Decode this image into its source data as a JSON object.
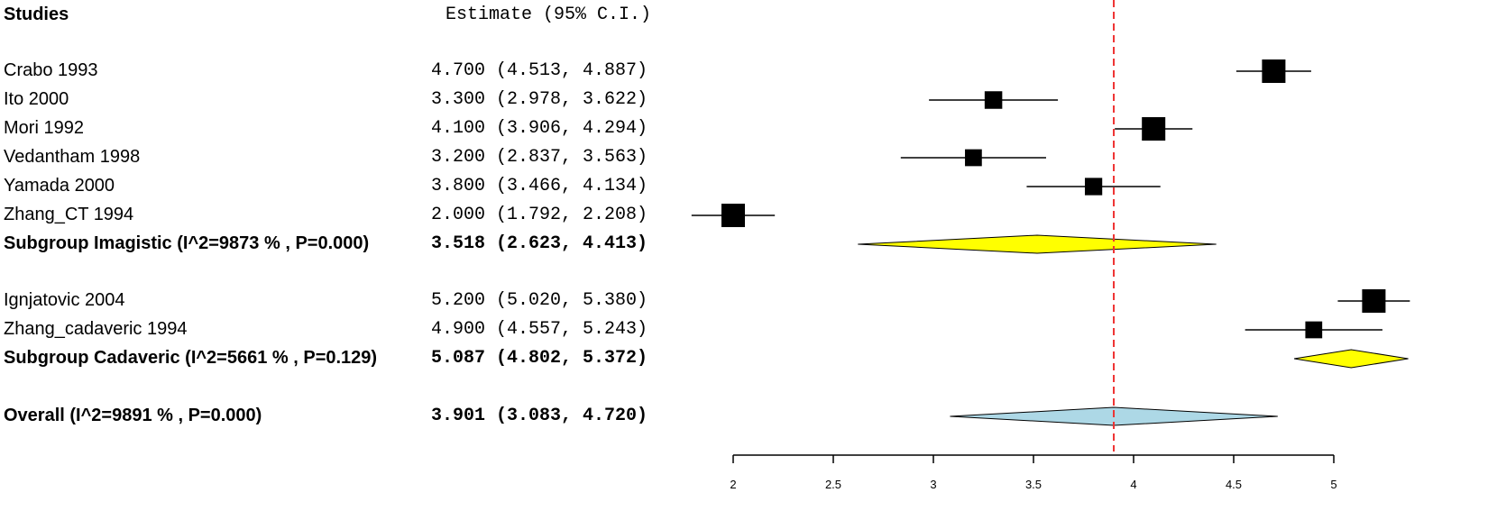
{
  "header": {
    "studies_label": "Studies",
    "estimate_label": "Estimate (95% C.I.)"
  },
  "chart_data": {
    "type": "forest",
    "xlim": [
      2,
      5.4
    ],
    "x_ticks": [
      "2",
      "2.5",
      "3",
      "3.5",
      "4",
      "4.5",
      "5"
    ],
    "reference_line": 3.901,
    "rows": [
      {
        "label": "Crabo 1993",
        "estimate_text": "4.700 (4.513, 4.887)",
        "est": 4.7,
        "lo": 4.513,
        "hi": 4.887,
        "kind": "study",
        "weight": 1.0
      },
      {
        "label": "Ito 2000",
        "estimate_text": "3.300 (2.978, 3.622)",
        "est": 3.3,
        "lo": 2.978,
        "hi": 3.622,
        "kind": "study",
        "weight": 0.75
      },
      {
        "label": "Mori 1992",
        "estimate_text": "4.100 (3.906, 4.294)",
        "est": 4.1,
        "lo": 3.906,
        "hi": 4.294,
        "kind": "study",
        "weight": 1.0
      },
      {
        "label": "Vedantham 1998",
        "estimate_text": "3.200 (2.837, 3.563)",
        "est": 3.2,
        "lo": 2.837,
        "hi": 3.563,
        "kind": "study",
        "weight": 0.72
      },
      {
        "label": "Yamada 2000",
        "estimate_text": "3.800 (3.466, 4.134)",
        "est": 3.8,
        "lo": 3.466,
        "hi": 4.134,
        "kind": "study",
        "weight": 0.74
      },
      {
        "label": "Zhang_CT 1994",
        "estimate_text": "2.000 (1.792, 2.208)",
        "est": 2.0,
        "lo": 1.792,
        "hi": 2.208,
        "kind": "study",
        "weight": 1.0
      },
      {
        "label": "Subgroup Imagistic (I^2=9873 % , P=0.000)",
        "estimate_text": "3.518 (2.623, 4.413)",
        "est": 3.518,
        "lo": 2.623,
        "hi": 4.413,
        "kind": "subgroup",
        "color": "#ffff00"
      },
      {
        "label": "Ignjatovic 2004",
        "estimate_text": "5.200 (5.020, 5.380)",
        "est": 5.2,
        "lo": 5.02,
        "hi": 5.38,
        "kind": "study",
        "weight": 1.0
      },
      {
        "label": "Zhang_cadaveric 1994",
        "estimate_text": "4.900 (4.557, 5.243)",
        "est": 4.9,
        "lo": 4.557,
        "hi": 5.243,
        "kind": "study",
        "weight": 0.72
      },
      {
        "label": "Subgroup Cadaveric (I^2=5661 % , P=0.129)",
        "estimate_text": "5.087 (4.802, 5.372)",
        "est": 5.087,
        "lo": 4.802,
        "hi": 5.372,
        "kind": "subgroup",
        "color": "#ffff00"
      },
      {
        "label": "Overall (I^2=9891 % , P=0.000)",
        "estimate_text": "3.901 (3.083, 4.720)",
        "est": 3.901,
        "lo": 3.083,
        "hi": 4.72,
        "kind": "overall",
        "color": "#add8e6"
      }
    ]
  }
}
